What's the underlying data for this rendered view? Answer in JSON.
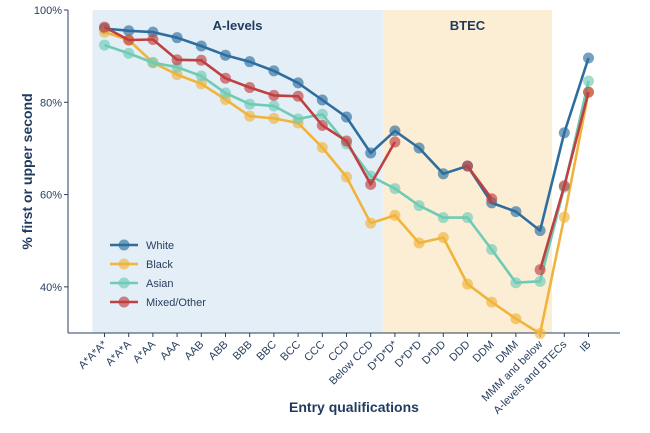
{
  "chart_data": {
    "type": "line",
    "xlabel": "Entry qualifications",
    "ylabel": "% first or upper second",
    "ylim": [
      30,
      100
    ],
    "yticks": [
      40,
      60,
      80,
      100
    ],
    "ytick_labels": [
      "40%",
      "60%",
      "80%",
      "100%"
    ],
    "grid": false,
    "legend_position": "bottom-left",
    "categories": [
      "A*A*A*",
      "A*A*A",
      "A*AA",
      "AAA",
      "AAB",
      "ABB",
      "BBB",
      "BBC",
      "BCC",
      "CCC",
      "CCD",
      "Below CCD",
      "D*D*D*",
      "D*D*D",
      "D*DD",
      "DDD",
      "DDM",
      "DMM",
      "MMM and below",
      "A-levels and BTECs",
      "IB"
    ],
    "regions": [
      {
        "label": "A-levels",
        "from": "A*A*A*",
        "to": "Below CCD",
        "color": "#e3eef7"
      },
      {
        "label": "BTEC",
        "from": "D*D*D*",
        "to": "MMM and below",
        "color": "#fbeed5"
      }
    ],
    "series": [
      {
        "name": "White",
        "color": "#2e6e9e",
        "values": [
          96,
          95.5,
          95.2,
          94,
          92.2,
          90.2,
          88.8,
          86.8,
          84.2,
          80.5,
          76.8,
          69,
          73.8,
          70.1,
          64.5,
          66.2,
          58.2,
          56.3,
          52.2,
          73.4,
          89.6
        ]
      },
      {
        "name": "Black",
        "color": "#f0b43c",
        "values": [
          95.2,
          93.5,
          88.6,
          86,
          84,
          80.6,
          77,
          76.5,
          75.5,
          70.2,
          63.8,
          53.8,
          55.5,
          49.5,
          50.7,
          40.6,
          36.7,
          33.1,
          29.9,
          55.1,
          82.2
        ]
      },
      {
        "name": "Asian",
        "color": "#6ecbb5",
        "values": [
          92.4,
          90.6,
          88.6,
          87.6,
          85.7,
          82,
          79.6,
          79.2,
          76.4,
          77.4,
          71,
          64,
          61.3,
          57.6,
          55,
          55,
          48.1,
          40.9,
          41.2,
          61.6,
          84.6
        ]
      },
      {
        "name": "Mixed/Other",
        "color": "#bf4040",
        "values": [
          96.3,
          93.5,
          93.6,
          89.2,
          89.1,
          85.2,
          83.2,
          81.5,
          81.3,
          75,
          71.6,
          62.2,
          71.4,
          null,
          null,
          66.2,
          59.1,
          null,
          43.7,
          61.9,
          82.2
        ]
      }
    ]
  }
}
